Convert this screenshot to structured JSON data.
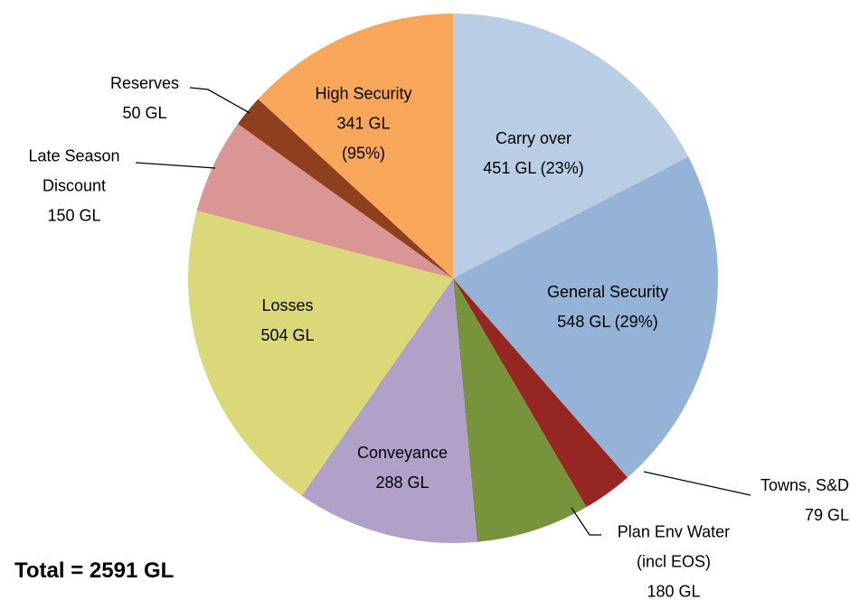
{
  "chart_data": {
    "type": "pie",
    "categories": [
      "Carry over",
      "General Security",
      "Towns, S&D",
      "Plan Env Water (incl EOS)",
      "Conveyance",
      "Losses",
      "Late Season Discount",
      "Reserves",
      "High Security"
    ],
    "values": [
      451,
      548,
      79,
      180,
      288,
      504,
      150,
      50,
      341
    ],
    "value_labels": [
      "451 GL (23%)",
      "548 GL (29%)",
      "79 GL",
      "180 GL",
      "288 GL",
      "504 GL",
      "150 GL",
      "50 GL",
      "341 GL (95%)"
    ],
    "colors": [
      "#b9cde5",
      "#95b3d7",
      "#962621",
      "#77933c",
      "#b1a0c7",
      "#dbd879",
      "#d99694",
      "#8e3f1e",
      "#f8a65a"
    ],
    "annotation": "Total = 2591 GL"
  }
}
